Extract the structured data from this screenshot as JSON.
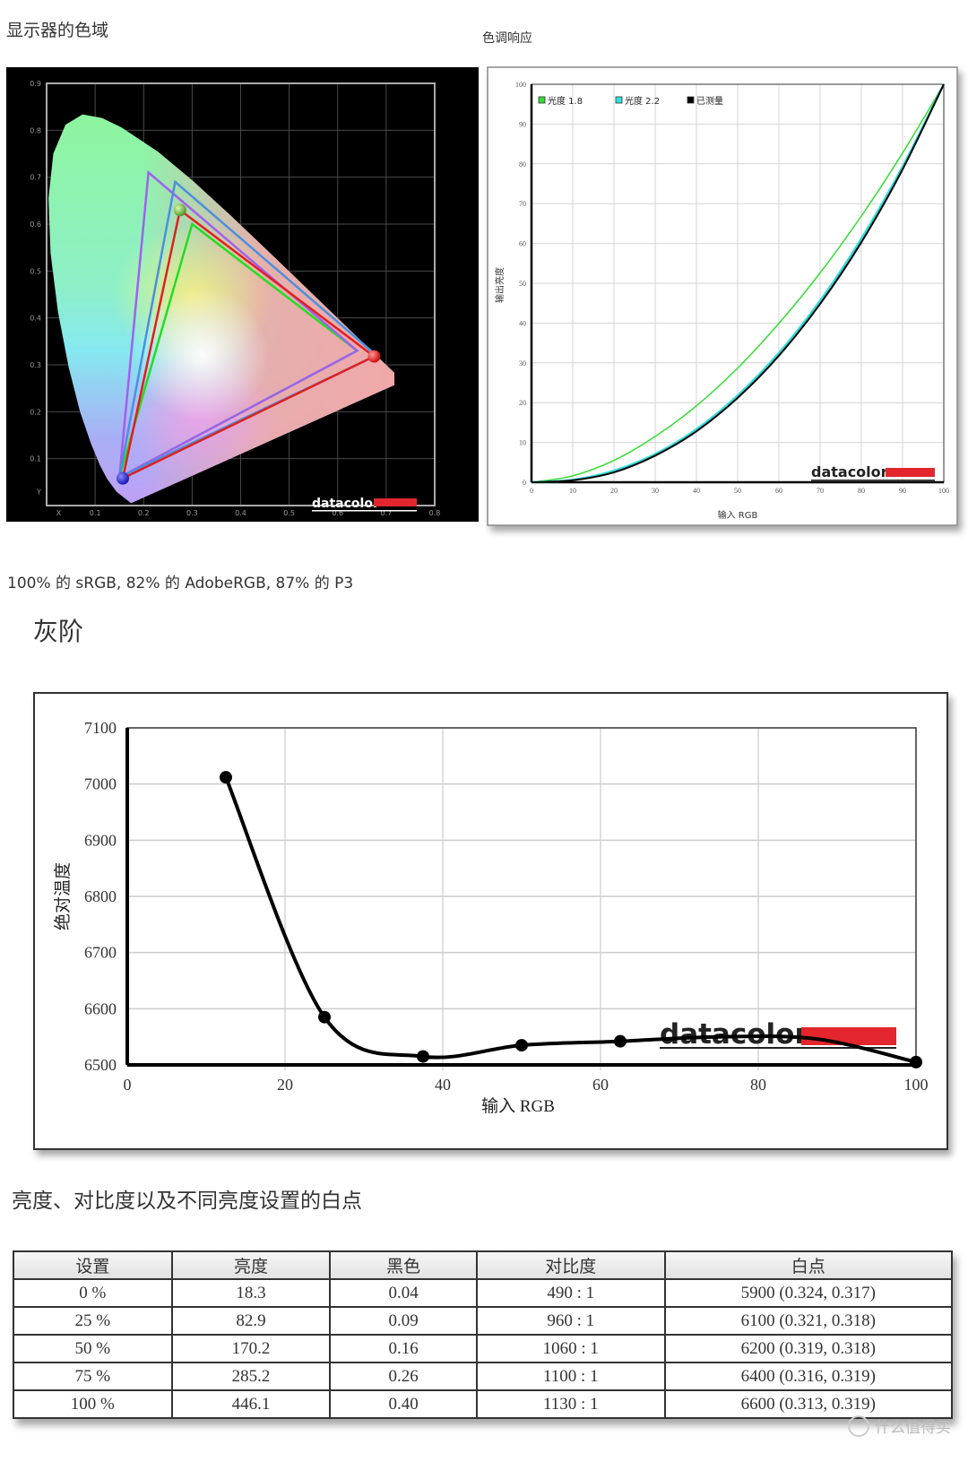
{
  "gamut_section": {
    "title": "显示器的色域",
    "caption": "100% 的 sRGB, 82% 的 AdobeRGB, 87% 的 P3",
    "logo": "datacolor"
  },
  "gamma_section": {
    "title": "色调响应",
    "logo": "datacolor"
  },
  "grayscale_section": {
    "title": "灰阶",
    "logo": "datacolor"
  },
  "table_section": {
    "title": "亮度、对比度以及不同亮度设置的白点",
    "headers": [
      "设置",
      "亮度",
      "黑色",
      "对比度",
      "白点"
    ],
    "rows": [
      [
        "0 %",
        "18.3",
        "0.04",
        "490 : 1",
        "5900 (0.324, 0.317)"
      ],
      [
        "25 %",
        "82.9",
        "0.09",
        "960 : 1",
        "6100 (0.321, 0.318)"
      ],
      [
        "50 %",
        "170.2",
        "0.16",
        "1060 : 1",
        "6200 (0.319, 0.318)"
      ],
      [
        "75 %",
        "285.2",
        "0.26",
        "1100 : 1",
        "6400 (0.316, 0.319)"
      ],
      [
        "100 %",
        "446.1",
        "0.40",
        "1130 : 1",
        "6600 (0.313, 0.319)"
      ]
    ]
  },
  "watermark": "什么值得买",
  "chart_data": [
    {
      "type": "scatter",
      "xlabel": "X",
      "ylabel": "Y",
      "xlim": [
        0,
        0.8
      ],
      "ylim": [
        0,
        0.9
      ],
      "x_ticks": [
        "X",
        "0.1",
        "0.2",
        "0.3",
        "0.4",
        "0.5",
        "0.6",
        "0.7",
        "0.8"
      ],
      "y_ticks": [
        "Y",
        "0.1",
        "0.2",
        "0.3",
        "0.4",
        "0.5",
        "0.6",
        "0.7",
        "0.8",
        "0.9"
      ],
      "grid": true,
      "background": "#000000",
      "series": [
        {
          "color": "#22dd22",
          "points": [
            [
              0.64,
              0.33
            ],
            [
              0.3,
              0.6
            ],
            [
              0.15,
              0.06
            ]
          ]
        },
        {
          "color": "#a060f0",
          "points": [
            [
              0.64,
              0.33
            ],
            [
              0.21,
              0.71
            ],
            [
              0.15,
              0.06
            ]
          ]
        },
        {
          "color": "#4a90e0",
          "points": [
            [
              0.68,
              0.32
            ],
            [
              0.265,
              0.69
            ],
            [
              0.15,
              0.06
            ]
          ]
        },
        {
          "color": "#e02020",
          "points": [
            [
              0.675,
              0.318
            ],
            [
              0.275,
              0.63
            ],
            [
              0.157,
              0.058
            ]
          ]
        }
      ]
    },
    {
      "type": "line",
      "xlabel": "输入 RGB",
      "ylabel": "输出亮度",
      "xlim": [
        0,
        100
      ],
      "ylim": [
        0,
        100
      ],
      "x": [
        0,
        10,
        20,
        30,
        40,
        50,
        60,
        70,
        80,
        90,
        100
      ],
      "x_ticks": [
        "0",
        "10",
        "20",
        "30",
        "40",
        "50",
        "60",
        "70",
        "80",
        "90",
        "100"
      ],
      "y_ticks": [
        "0",
        "10",
        "20",
        "30",
        "40",
        "50",
        "60",
        "70",
        "80",
        "90",
        "100"
      ],
      "grid": true,
      "legend": "top-left",
      "series": [
        {
          "name": "光度 1.8",
          "color": "#33dd33",
          "values": [
            0,
            1.6,
            5.5,
            11.5,
            19.2,
            28.7,
            39.9,
            52.6,
            66.9,
            82.7,
            100
          ]
        },
        {
          "name": "光度 2.2",
          "color": "#33dddd",
          "values": [
            0,
            0.6,
            2.9,
            7.1,
            13.3,
            21.8,
            32.5,
            45.6,
            61.2,
            79.3,
            100
          ]
        },
        {
          "name": "已测量",
          "color": "#000000",
          "values": [
            0,
            0.5,
            2.5,
            6.7,
            12.8,
            21.2,
            31.8,
            44.8,
            60.3,
            78.6,
            100
          ]
        }
      ]
    },
    {
      "type": "line",
      "xlabel": "输入 RGB",
      "ylabel": "绝对温度",
      "xlim": [
        0,
        100
      ],
      "ylim": [
        6500,
        7100
      ],
      "x_ticks": [
        "0",
        "20",
        "40",
        "60",
        "80",
        "100"
      ],
      "y_ticks": [
        "6500",
        "6600",
        "6700",
        "6800",
        "6900",
        "7000",
        "7100"
      ],
      "grid": true,
      "series": [
        {
          "color": "#000000",
          "x": [
            12.5,
            25,
            37.5,
            50,
            62.5,
            75,
            87.5,
            100
          ],
          "values": [
            7012,
            6585,
            6515,
            6535,
            6542,
            6550,
            6546,
            6505
          ]
        }
      ]
    }
  ]
}
